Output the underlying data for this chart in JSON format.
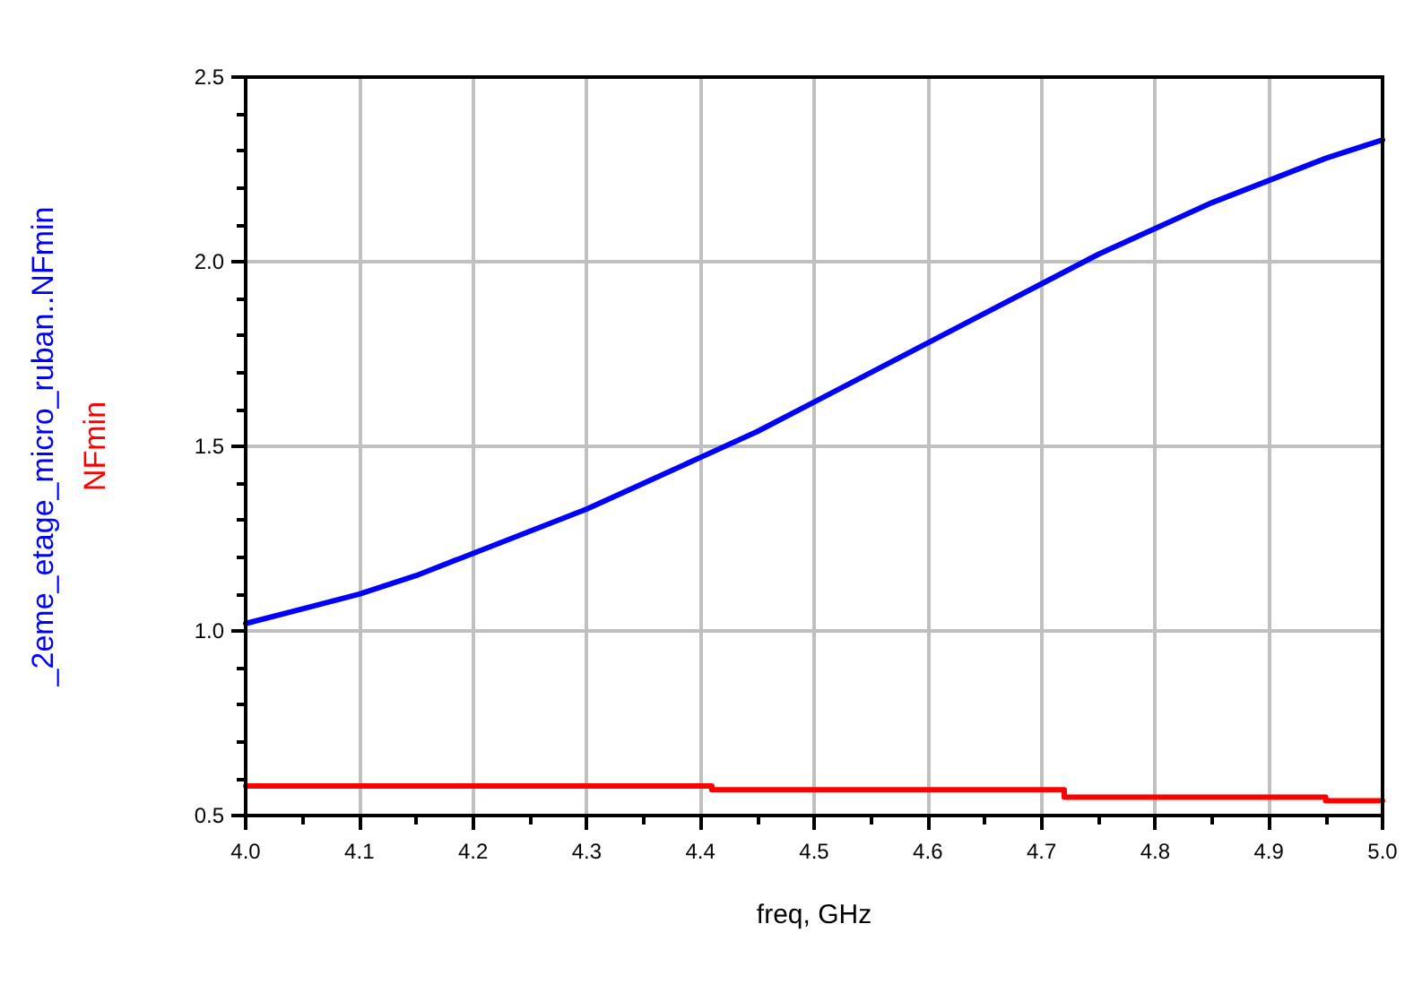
{
  "chart_data": {
    "type": "line",
    "xlabel": "freq, GHz",
    "legend": "left",
    "grid": true,
    "marker": "none",
    "line_style": "solid",
    "xlim": [
      4.0,
      5.0
    ],
    "xticks": [
      {
        "value": 4.0,
        "label": "4.0"
      },
      {
        "value": 4.05,
        "label": null
      },
      {
        "value": 4.1,
        "label": "4.1"
      },
      {
        "value": 4.15,
        "label": null
      },
      {
        "value": 4.2,
        "label": "4.2"
      },
      {
        "value": 4.25,
        "label": null
      },
      {
        "value": 4.3,
        "label": "4.3"
      },
      {
        "value": 4.35,
        "label": null
      },
      {
        "value": 4.4,
        "label": "4.4"
      },
      {
        "value": 4.45,
        "label": null
      },
      {
        "value": 4.5,
        "label": "4.5"
      },
      {
        "value": 4.55,
        "label": null
      },
      {
        "value": 4.6,
        "label": "4.6"
      },
      {
        "value": 4.65,
        "label": null
      },
      {
        "value": 4.7,
        "label": "4.7"
      },
      {
        "value": 4.75,
        "label": null
      },
      {
        "value": 4.8,
        "label": "4.8"
      },
      {
        "value": 4.85,
        "label": null
      },
      {
        "value": 4.9,
        "label": "4.9"
      },
      {
        "value": 4.95,
        "label": null
      },
      {
        "value": 5.0,
        "label": "5.0"
      }
    ],
    "ylim": [
      0.5,
      2.5
    ],
    "yticks": [
      {
        "value": 0.5,
        "label": "0.5"
      },
      {
        "value": 0.6,
        "label": null
      },
      {
        "value": 0.7,
        "label": null
      },
      {
        "value": 0.8,
        "label": null
      },
      {
        "value": 0.9,
        "label": null
      },
      {
        "value": 1.0,
        "label": "1.0"
      },
      {
        "value": 1.1,
        "label": null
      },
      {
        "value": 1.2,
        "label": null
      },
      {
        "value": 1.3,
        "label": null
      },
      {
        "value": 1.4,
        "label": null
      },
      {
        "value": 1.5,
        "label": "1.5"
      },
      {
        "value": 1.6,
        "label": null
      },
      {
        "value": 1.7,
        "label": null
      },
      {
        "value": 1.8,
        "label": null
      },
      {
        "value": 1.9,
        "label": null
      },
      {
        "value": 2.0,
        "label": "2.0"
      },
      {
        "value": 2.1,
        "label": null
      },
      {
        "value": 2.2,
        "label": null
      },
      {
        "value": 2.3,
        "label": null
      },
      {
        "value": 2.4,
        "label": null
      },
      {
        "value": 2.5,
        "label": "2.5"
      }
    ],
    "series": [
      {
        "name": "_2eme_etage_micro_ruban..NFmin",
        "color": "#0000ff",
        "x": [
          4.0,
          4.05,
          4.1,
          4.15,
          4.2,
          4.25,
          4.3,
          4.35,
          4.4,
          4.45,
          4.5,
          4.55,
          4.6,
          4.65,
          4.7,
          4.75,
          4.8,
          4.85,
          4.9,
          4.95,
          5.0
        ],
        "values": [
          1.02,
          1.06,
          1.1,
          1.15,
          1.21,
          1.27,
          1.33,
          1.4,
          1.47,
          1.54,
          1.62,
          1.7,
          1.78,
          1.86,
          1.94,
          2.02,
          2.09,
          2.16,
          2.22,
          2.28,
          2.33
        ]
      },
      {
        "name": "NFmin",
        "color": "#ff0000",
        "type": "step",
        "x": [
          4.0,
          4.41,
          4.72,
          4.95,
          5.0
        ],
        "values": [
          0.58,
          0.57,
          0.55,
          0.54,
          0.54
        ]
      }
    ]
  }
}
